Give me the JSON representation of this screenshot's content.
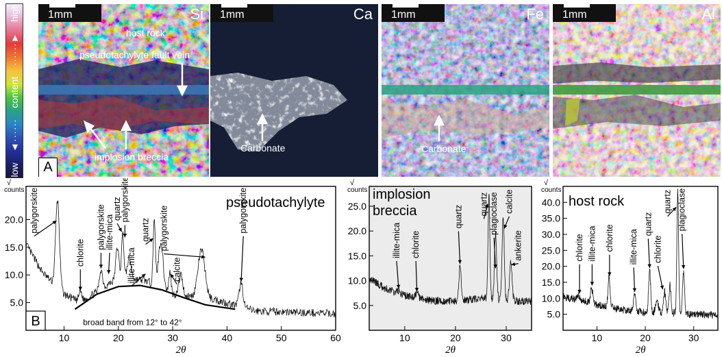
{
  "colorbar": {
    "high_label": "high",
    "content_label": "content",
    "low_label": "low",
    "colors": [
      "#f4f0ff",
      "#e9b8d6",
      "#e6738f",
      "#e43a3a",
      "#ee7730",
      "#f7c23a",
      "#cfe43a",
      "#48c640",
      "#2aa383",
      "#2a86c7",
      "#2f52b6",
      "#23309a",
      "#1b1f6a",
      "#161640"
    ]
  },
  "maps": [
    {
      "element": "Si",
      "scale_label": "1mm",
      "panel_letter": "A",
      "annotations": [
        "host rock",
        "pseudotachylyte fault vein",
        "implosion breccia"
      ]
    },
    {
      "element": "Ca",
      "scale_label": "1mm",
      "annotations": [
        "Carbonate"
      ]
    },
    {
      "element": "Fe",
      "scale_label": "1mm",
      "annotations": [
        "Carbonate"
      ]
    },
    {
      "element": "Al",
      "scale_label": "1mm"
    }
  ],
  "chart_data": [
    {
      "type": "line",
      "title": "pseudotachylyte",
      "panel_letter": "B",
      "xlabel": "2θ",
      "ylabel": "√ counts",
      "xlim": [
        3,
        60
      ],
      "ylim": [
        0,
        26
      ],
      "xticks": [
        10,
        20,
        30,
        40,
        50,
        60
      ],
      "yticks": [
        5.0,
        10.0,
        15.0,
        20.0
      ],
      "tick_labels_y": [
        "5.0",
        "10.0",
        "15.0",
        "20.0"
      ],
      "tick_labels_x": [
        "10",
        "20",
        "30",
        "40",
        "50",
        "60"
      ],
      "peaks": [
        {
          "x": 8.8,
          "y": 23.5,
          "w": 0.5
        },
        {
          "x": 13.0,
          "y": 7.0,
          "w": 0.4
        },
        {
          "x": 16.8,
          "y": 11.0,
          "w": 0.4
        },
        {
          "x": 19.8,
          "y": 15.0,
          "w": 0.4
        },
        {
          "x": 20.8,
          "y": 17.5,
          "w": 0.3
        },
        {
          "x": 22.0,
          "y": 13.0,
          "w": 0.5
        },
        {
          "x": 26.6,
          "y": 19.5,
          "w": 0.3
        },
        {
          "x": 27.8,
          "y": 16.0,
          "w": 0.6
        },
        {
          "x": 29.5,
          "y": 10.5,
          "w": 0.3
        },
        {
          "x": 31.5,
          "y": 10.0,
          "w": 0.5
        },
        {
          "x": 35.3,
          "y": 14.5,
          "w": 0.9
        },
        {
          "x": 42.6,
          "y": 8.5,
          "w": 0.5
        }
      ],
      "baseline": [
        [
          3,
          15.5
        ],
        [
          6,
          10.5
        ],
        [
          10,
          6.5
        ],
        [
          13,
          5
        ],
        [
          20,
          9.5
        ],
        [
          25,
          9
        ],
        [
          30,
          6.5
        ],
        [
          38,
          5.5
        ],
        [
          45,
          3.5
        ],
        [
          60,
          3
        ]
      ],
      "band": {
        "label": "broad band from 12°  to 42°",
        "points": [
          [
            12,
            3.8
          ],
          [
            16,
            6.5
          ],
          [
            20,
            7.9
          ],
          [
            24,
            8.1
          ],
          [
            28,
            7.3
          ],
          [
            32,
            5.9
          ],
          [
            36,
            4.6
          ],
          [
            41.5,
            3.8
          ]
        ]
      },
      "labels": [
        {
          "text": "palygorskite",
          "x": 4.5,
          "y": 17.5,
          "arrow": {
            "x": 8.6,
            "y": 19.8
          }
        },
        {
          "text": "chlorite",
          "x": 13.0,
          "y": 11.5,
          "arrow": {
            "x": 13.0,
            "y": 7.2
          }
        },
        {
          "text": "palygorskite",
          "x": 16.8,
          "y": 14.5,
          "arrow": {
            "x": 16.8,
            "y": 11.2
          }
        },
        {
          "text": "illite-mica",
          "x": 18.4,
          "y": 14.5,
          "arrow": {
            "x": 18.2,
            "y": 10.2
          }
        },
        {
          "text": "quartz",
          "x": 19.8,
          "y": 19.8,
          "arrow": {
            "x": 20.6,
            "y": 17.8
          }
        },
        {
          "text": "palygorskite",
          "x": 21.2,
          "y": 19.5,
          "arrow": {
            "x": 21.2,
            "y": 16.8
          }
        },
        {
          "text": "illite-mica",
          "x": 22.4,
          "y": 8.5,
          "arrow": {
            "x": 25.0,
            "y": 10.2
          }
        },
        {
          "text": "quartz",
          "x": 25.0,
          "y": 16.0,
          "arrow": {
            "x": 26.4,
            "y": 16.6
          }
        },
        {
          "text": "palygorskite",
          "x": 28.4,
          "y": 14.3,
          "arrow": {
            "x": 36.0,
            "y": 13.2
          }
        },
        {
          "text": "calcite",
          "x": 30.8,
          "y": 8.8,
          "arrow": {
            "x": 29.6,
            "y": 10.2
          }
        },
        {
          "text": "palygorskite",
          "x": 43.0,
          "y": 17.5,
          "arrow": {
            "x": 42.6,
            "y": 8.8
          }
        }
      ]
    },
    {
      "type": "line",
      "title": "implosion breccia",
      "title_lines": [
        "implosion",
        "breccia"
      ],
      "xlabel": "2θ",
      "ylabel": "√ counts",
      "xlim": [
        3,
        35
      ],
      "ylim": [
        0,
        29
      ],
      "xticks": [
        10,
        20,
        30
      ],
      "yticks": [
        5.0,
        10.0,
        15.0,
        20.0,
        25.0
      ],
      "tick_labels_y": [
        "5.0",
        "10.0",
        "15.0",
        "20.0",
        "25.0"
      ],
      "tick_labels_x": [
        "10",
        "20",
        "30"
      ],
      "peaks": [
        {
          "x": 8.8,
          "y": 8.0,
          "w": 0.4
        },
        {
          "x": 12.4,
          "y": 7.5,
          "w": 0.4
        },
        {
          "x": 20.9,
          "y": 13.0,
          "w": 0.3
        },
        {
          "x": 26.6,
          "y": 27.5,
          "w": 0.25
        },
        {
          "x": 27.9,
          "y": 19.5,
          "w": 0.3
        },
        {
          "x": 29.4,
          "y": 23.0,
          "w": 0.3
        },
        {
          "x": 30.9,
          "y": 13.5,
          "w": 0.35
        }
      ],
      "baseline": [
        [
          3,
          10.5
        ],
        [
          6,
          8.5
        ],
        [
          10,
          7
        ],
        [
          15,
          6
        ],
        [
          20,
          5.8
        ],
        [
          25,
          6.5
        ],
        [
          30,
          6
        ],
        [
          35,
          5.8
        ]
      ],
      "labels": [
        {
          "text": "illite-mica",
          "x": 8.4,
          "y": 14.5,
          "arrow": {
            "x": 8.8,
            "y": 8.4
          }
        },
        {
          "text": "chlorite",
          "x": 12.2,
          "y": 14.5,
          "arrow": {
            "x": 12.4,
            "y": 7.8
          }
        },
        {
          "text": "quartz",
          "x": 20.6,
          "y": 20.5,
          "arrow": {
            "x": 20.9,
            "y": 13.4
          }
        },
        {
          "text": "quartz",
          "x": 25.6,
          "y": 23.0,
          "arrow": {
            "x": 26.4,
            "y": 25.5
          }
        },
        {
          "text": "plagioclase",
          "x": 27.6,
          "y": 19.2,
          "arrow": {
            "x": 27.9,
            "y": 12.5
          }
        },
        {
          "text": "calcite",
          "x": 30.6,
          "y": 23.5,
          "arrow": {
            "x": 29.6,
            "y": 20.5
          }
        },
        {
          "text": "ankerite",
          "x": 32.4,
          "y": 14.0,
          "arrow": {
            "x": 31.0,
            "y": 13.2
          }
        }
      ]
    },
    {
      "type": "line",
      "title": "host rock",
      "xlabel": "2θ",
      "ylabel": "√ counts",
      "xlim": [
        3,
        35
      ],
      "ylim": [
        0,
        45
      ],
      "xticks": [
        10,
        20,
        30
      ],
      "yticks": [
        5.0,
        10.0,
        15.0,
        20.0,
        25.0,
        30.0,
        35.0,
        40.0
      ],
      "tick_labels_y": [
        "5.0",
        "10.0",
        "15.0",
        "20.0",
        "25.0",
        "30.0",
        "35.0",
        "40.0"
      ],
      "tick_labels_x": [
        "10",
        "20",
        "30"
      ],
      "peaks": [
        {
          "x": 6.2,
          "y": 11.0,
          "w": 0.4
        },
        {
          "x": 8.9,
          "y": 13.5,
          "w": 0.3
        },
        {
          "x": 12.5,
          "y": 16.5,
          "w": 0.3
        },
        {
          "x": 17.8,
          "y": 11.5,
          "w": 0.35
        },
        {
          "x": 20.9,
          "y": 19.0,
          "w": 0.3
        },
        {
          "x": 22.4,
          "y": 9.5,
          "w": 0.4
        },
        {
          "x": 24.0,
          "y": 12.0,
          "w": 0.3
        },
        {
          "x": 25.1,
          "y": 14.0,
          "w": 0.3
        },
        {
          "x": 26.7,
          "y": 43.5,
          "w": 0.25
        },
        {
          "x": 27.9,
          "y": 18.5,
          "w": 0.3
        }
      ],
      "baseline": [
        [
          3,
          10.5
        ],
        [
          6,
          9.5
        ],
        [
          10,
          8
        ],
        [
          15,
          6.5
        ],
        [
          20,
          5.5
        ],
        [
          25,
          5.5
        ],
        [
          30,
          5
        ],
        [
          35,
          4.8
        ]
      ],
      "labels": [
        {
          "text": "chlorite",
          "x": 6.4,
          "y": 21.5,
          "arrow": {
            "x": 6.4,
            "y": 11.5
          }
        },
        {
          "text": "illite-mica",
          "x": 9.0,
          "y": 21.5,
          "arrow": {
            "x": 9.0,
            "y": 14.0
          }
        },
        {
          "text": "chlorite",
          "x": 12.6,
          "y": 24.5,
          "arrow": {
            "x": 12.6,
            "y": 17.0
          }
        },
        {
          "text": "illite-mica",
          "x": 17.6,
          "y": 20.5,
          "arrow": {
            "x": 17.8,
            "y": 12.0
          }
        },
        {
          "text": "quartz",
          "x": 20.6,
          "y": 29.5,
          "arrow": {
            "x": 20.9,
            "y": 19.5
          }
        },
        {
          "text": "chlorite",
          "x": 22.6,
          "y": 21.0,
          "arrow": {
            "x": 23.6,
            "y": 12.8
          }
        },
        {
          "text": "quartz",
          "x": 24.6,
          "y": 36.5,
          "arrow": {
            "x": 26.4,
            "y": 38.5
          }
        },
        {
          "text": "plagioclase",
          "x": 27.6,
          "y": 31.0,
          "arrow": {
            "x": 27.9,
            "y": 19.2
          }
        }
      ]
    }
  ]
}
